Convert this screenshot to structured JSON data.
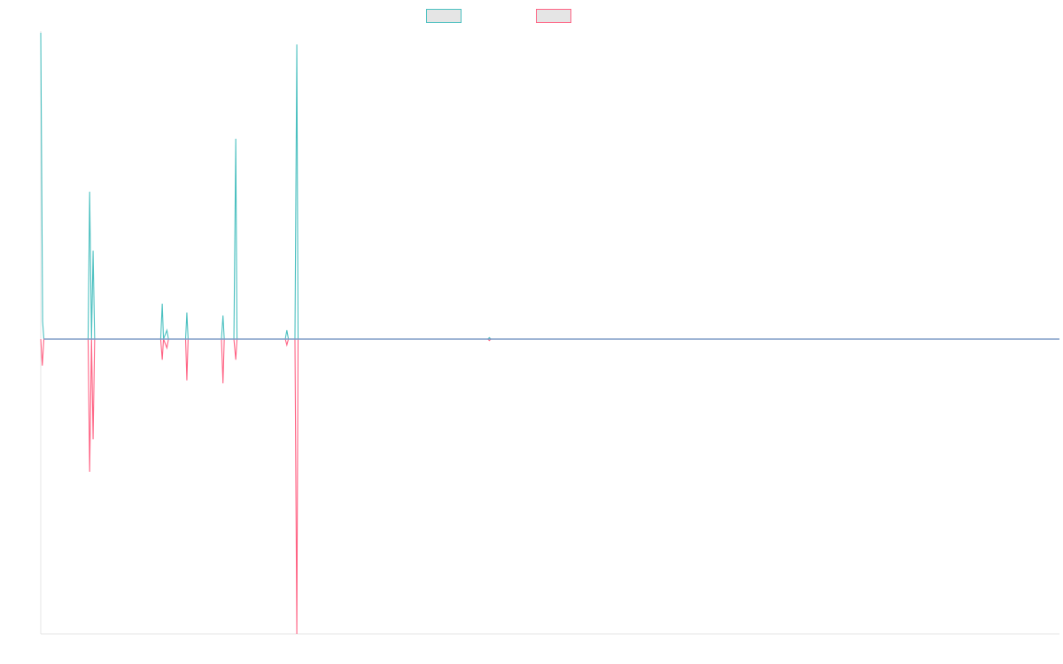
{
  "chart_data": {
    "type": "line",
    "title": "",
    "xlabel": "",
    "ylabel": "",
    "grid": false,
    "legend_position": "top-center",
    "x_range": [
      0,
      327
    ],
    "ylim": [
      -1.0,
      1.04
    ],
    "baseline_color": "#7f9cc6",
    "series": [
      {
        "legend_label": "",
        "color": "#4bc0c0",
        "legend_fill": "#e5e5e5",
        "points": [
          [
            0.0,
            1.04
          ],
          [
            0.6,
            0.06
          ],
          [
            1.0,
            0.0
          ],
          [
            15.2,
            0.0
          ],
          [
            15.7,
            0.5
          ],
          [
            16.3,
            0.0
          ],
          [
            16.8,
            0.3
          ],
          [
            17.3,
            0.0
          ],
          [
            21.0,
            0.0
          ],
          [
            38.5,
            0.0
          ],
          [
            39.0,
            0.12
          ],
          [
            39.4,
            0.0
          ],
          [
            40.5,
            0.03
          ],
          [
            41.0,
            0.0
          ],
          [
            46.5,
            0.0
          ],
          [
            46.9,
            0.09
          ],
          [
            47.3,
            0.0
          ],
          [
            58.0,
            0.0
          ],
          [
            58.5,
            0.08
          ],
          [
            58.9,
            0.0
          ],
          [
            62.0,
            0.0
          ],
          [
            62.6,
            0.68
          ],
          [
            63.0,
            0.0
          ],
          [
            78.5,
            0.0
          ],
          [
            79.0,
            0.03
          ],
          [
            79.5,
            0.0
          ],
          [
            81.6,
            0.0
          ],
          [
            82.2,
            1.0
          ],
          [
            82.6,
            0.0
          ],
          [
            143.5,
            0.0
          ],
          [
            144.0,
            0.005
          ],
          [
            144.5,
            0.0
          ],
          [
            327.0,
            0.0
          ]
        ]
      },
      {
        "legend_label": "",
        "color": "#ff6384",
        "legend_fill": "#e5e5e5",
        "points": [
          [
            0.0,
            0.0
          ],
          [
            0.5,
            -0.09
          ],
          [
            1.0,
            0.0
          ],
          [
            15.2,
            0.0
          ],
          [
            15.7,
            -0.45
          ],
          [
            16.3,
            0.0
          ],
          [
            16.8,
            -0.34
          ],
          [
            17.3,
            0.0
          ],
          [
            21.0,
            0.0
          ],
          [
            38.5,
            0.0
          ],
          [
            39.0,
            -0.07
          ],
          [
            39.4,
            0.0
          ],
          [
            40.5,
            -0.03
          ],
          [
            41.0,
            0.0
          ],
          [
            46.5,
            0.0
          ],
          [
            46.9,
            -0.14
          ],
          [
            47.3,
            0.0
          ],
          [
            58.0,
            0.0
          ],
          [
            58.5,
            -0.15
          ],
          [
            58.9,
            0.0
          ],
          [
            62.0,
            0.0
          ],
          [
            62.6,
            -0.07
          ],
          [
            63.0,
            0.0
          ],
          [
            78.5,
            0.0
          ],
          [
            79.0,
            -0.02
          ],
          [
            79.5,
            0.0
          ],
          [
            81.6,
            0.0
          ],
          [
            82.2,
            -1.0
          ],
          [
            82.6,
            0.0
          ],
          [
            143.5,
            0.0
          ],
          [
            144.0,
            -0.005
          ],
          [
            144.5,
            0.0
          ],
          [
            327.0,
            0.0
          ]
        ]
      }
    ]
  }
}
